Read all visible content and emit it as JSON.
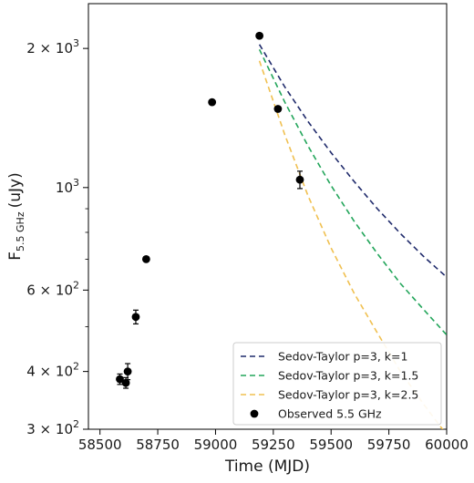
{
  "chart_data": {
    "type": "scatter",
    "title": "",
    "xlabel": "Time (MJD)",
    "ylabel_main": "F",
    "ylabel_sub": "5.5 GHz",
    "ylabel_unit": "(uJy)",
    "xlim": [
      58450,
      60000
    ],
    "ylim": [
      300,
      2500
    ],
    "yscale": "log",
    "grid": false,
    "legend_position": "lower-right",
    "x_ticks": [
      {
        "value": 58500,
        "label": "58500"
      },
      {
        "value": 58750,
        "label": "58750"
      },
      {
        "value": 59000,
        "label": "59000"
      },
      {
        "value": 59250,
        "label": "59250"
      },
      {
        "value": 59500,
        "label": "59500"
      },
      {
        "value": 59750,
        "label": "59750"
      },
      {
        "value": 60000,
        "label": "60000"
      }
    ],
    "y_major_ticks": [
      {
        "value": 300,
        "mantissa": "3",
        "exp": "2"
      },
      {
        "value": 400,
        "mantissa": "4",
        "exp": "2"
      },
      {
        "value": 600,
        "mantissa": "6",
        "exp": "2"
      },
      {
        "value": 1000,
        "mantissa": "",
        "exp": "3"
      },
      {
        "value": 2000,
        "mantissa": "2",
        "exp": "3"
      }
    ],
    "y_minor_ticks": [
      500,
      700,
      800,
      900
    ],
    "observed": {
      "name": "Observed 5.5 GHz",
      "color": "#000000",
      "points": [
        {
          "x": 58586,
          "y": 385,
          "err": 10
        },
        {
          "x": 58612,
          "y": 378,
          "err": 10
        },
        {
          "x": 58620,
          "y": 400,
          "err": 16
        },
        {
          "x": 58655,
          "y": 525,
          "err": 18
        },
        {
          "x": 58700,
          "y": 700,
          "err": 8
        },
        {
          "x": 58985,
          "y": 1530,
          "err": 8
        },
        {
          "x": 59190,
          "y": 2130,
          "err": 8
        },
        {
          "x": 59270,
          "y": 1480,
          "err": 10
        },
        {
          "x": 59365,
          "y": 1040,
          "err": 45
        }
      ]
    },
    "series": [
      {
        "name": "Sedov-Taylor p=3, k=1",
        "color": "#1f2a6b",
        "x": [
          59190,
          59300,
          59400,
          59500,
          59600,
          59700,
          59800,
          59900,
          60000
        ],
        "y": [
          2040,
          1650,
          1390,
          1190,
          1030,
          900,
          795,
          710,
          640
        ]
      },
      {
        "name": "Sedov-Taylor p=3, k=1.5",
        "color": "#22a55a",
        "x": [
          59190,
          59300,
          59400,
          59500,
          59600,
          59700,
          59800,
          59900,
          60000
        ],
        "y": [
          1990,
          1530,
          1230,
          1010,
          845,
          720,
          620,
          545,
          480
        ]
      },
      {
        "name": "Sedov-Taylor p=3, k=2.5",
        "color": "#f0c050",
        "x": [
          59190,
          59300,
          59400,
          59500,
          59600,
          59700,
          59800,
          59900,
          60000
        ],
        "y": [
          1880,
          1300,
          960,
          740,
          590,
          485,
          400,
          340,
          292
        ]
      }
    ]
  }
}
